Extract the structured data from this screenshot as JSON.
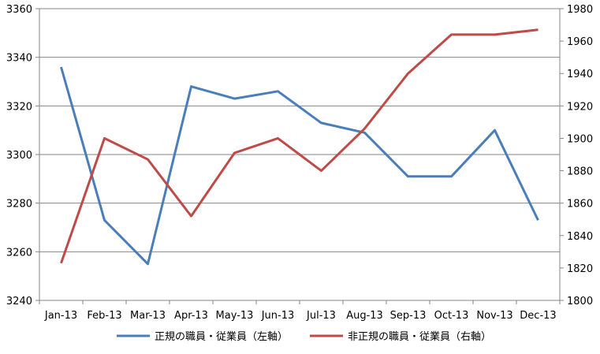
{
  "chart_data": {
    "type": "line",
    "categories": [
      "Jan-13",
      "Feb-13",
      "Mar-13",
      "Apr-13",
      "May-13",
      "Jun-13",
      "Jul-13",
      "Aug-13",
      "Sep-13",
      "Oct-13",
      "Nov-13",
      "Dec-13"
    ],
    "series": [
      {
        "name": "正規の職員・従業員（左軸）",
        "axis": "left",
        "color": "#4a7ebb",
        "values": [
          3336,
          3273,
          3255,
          3328,
          3323,
          3326,
          3313,
          3309,
          3291,
          3291,
          3310,
          3273
        ]
      },
      {
        "name": "非正規の職員・従業員（右軸）",
        "axis": "right",
        "color": "#be4b48",
        "values": [
          1823,
          1900,
          1887,
          1852,
          1891,
          1900,
          1880,
          1906,
          1940,
          1964,
          1964,
          1967
        ]
      }
    ],
    "left_axis": {
      "ylim": [
        3240,
        3360
      ],
      "ticks": [
        "3240",
        "3260",
        "3280",
        "3300",
        "3320",
        "3340",
        "3360"
      ]
    },
    "right_axis": {
      "ylim": [
        1800,
        1980
      ],
      "ticks": [
        "1800",
        "1820",
        "1840",
        "1860",
        "1880",
        "1900",
        "1920",
        "1940",
        "1960",
        "1980"
      ]
    },
    "title": "",
    "xlabel": "",
    "ylabel": "",
    "grid": "horizontal",
    "legend_position": "bottom"
  }
}
